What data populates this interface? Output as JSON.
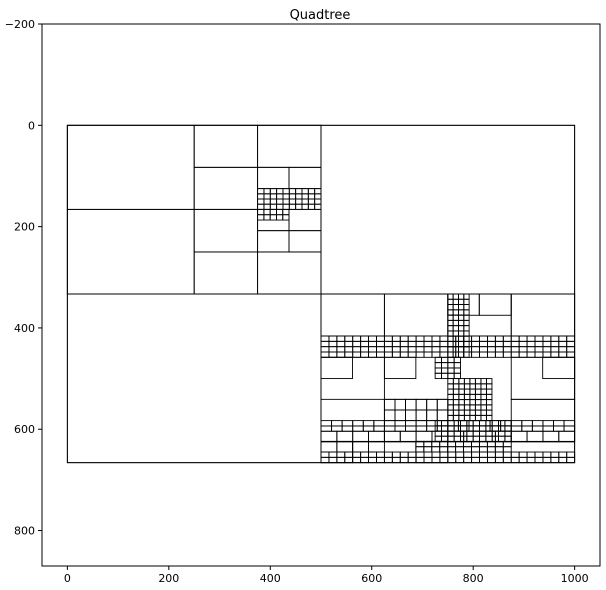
{
  "chart_data": {
    "type": "quadtree",
    "title": "Quadtree",
    "xlim": [
      -50,
      1050
    ],
    "ylim": [
      -200,
      870
    ],
    "y_inverted": true,
    "xticks": [
      0,
      200,
      400,
      600,
      800,
      1000
    ],
    "yticks": [
      -200,
      0,
      200,
      400,
      600,
      800
    ],
    "grid": false,
    "rects": [
      [
        0,
        0,
        1000,
        666
      ],
      [
        0,
        0,
        500,
        333
      ],
      [
        500,
        0,
        500,
        333
      ],
      [
        0,
        333,
        500,
        333
      ],
      [
        500,
        333,
        500,
        333
      ],
      [
        0,
        0,
        250,
        166
      ],
      [
        250,
        0,
        125,
        83
      ],
      [
        375,
        0,
        125,
        83
      ],
      [
        250,
        83,
        125,
        83
      ],
      [
        0,
        166,
        250,
        167
      ],
      [
        250,
        166,
        125,
        84
      ],
      [
        250,
        250,
        125,
        83
      ],
      [
        375,
        250,
        125,
        83
      ],
      [
        375,
        83,
        62,
        42
      ],
      [
        437,
        83,
        63,
        42
      ],
      [
        375,
        166,
        62,
        42
      ],
      [
        437,
        166,
        63,
        42
      ],
      [
        375,
        208,
        62,
        42
      ],
      [
        437,
        208,
        63,
        42
      ],
      [
        500,
        333,
        125,
        83
      ],
      [
        625,
        333,
        125,
        83
      ],
      [
        750,
        333,
        125,
        83
      ],
      [
        875,
        333,
        125,
        83
      ],
      [
        500,
        458,
        125,
        83
      ],
      [
        875,
        458,
        125,
        83
      ],
      [
        625,
        541,
        125,
        83
      ],
      [
        875,
        541,
        125,
        83
      ],
      [
        625,
        458,
        62,
        42
      ],
      [
        500,
        458,
        62,
        42
      ],
      [
        937,
        458,
        63,
        42
      ],
      [
        750,
        333,
        62,
        42
      ],
      [
        812,
        333,
        63,
        42
      ],
      [
        500,
        624,
        62,
        42
      ],
      [
        687,
        624,
        63,
        42
      ]
    ],
    "dense_regions": [
      [
        375,
        125,
        125,
        41,
        10,
        4
      ],
      [
        375,
        166,
        62,
        21,
        5,
        2
      ],
      [
        500,
        416,
        500,
        21,
        32,
        2
      ],
      [
        500,
        437,
        500,
        21,
        32,
        2
      ],
      [
        750,
        333,
        42,
        125,
        4,
        12
      ],
      [
        725,
        458,
        50,
        42,
        4,
        4
      ],
      [
        750,
        500,
        87,
        83,
        8,
        8
      ],
      [
        725,
        583,
        150,
        41,
        12,
        4
      ],
      [
        500,
        583,
        500,
        21,
        24,
        2
      ],
      [
        500,
        604,
        500,
        21,
        16,
        1
      ],
      [
        500,
        645,
        500,
        21,
        32,
        2
      ],
      [
        687,
        624,
        188,
        21,
        12,
        2
      ],
      [
        625,
        541,
        125,
        42,
        6,
        2
      ],
      [
        500,
        624,
        125,
        21,
        4,
        1
      ]
    ]
  }
}
